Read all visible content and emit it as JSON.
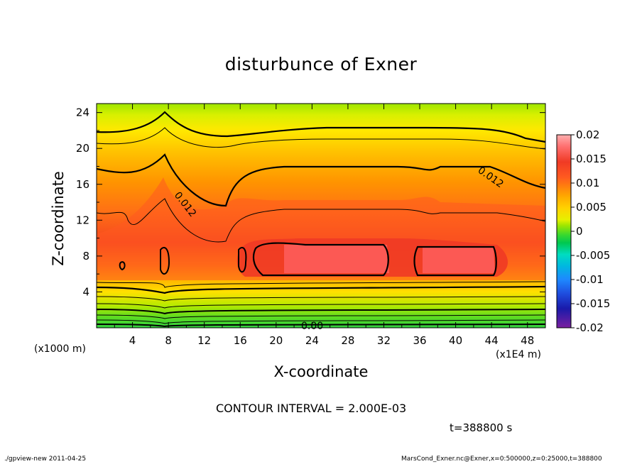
{
  "chart_data": {
    "type": "heatmap",
    "title": "disturbunce of Exner",
    "xlabel": "X-coordinate",
    "ylabel": "Z-coordinate",
    "x_unit": "(x1E4 m)",
    "y_unit": "(x1000 m)",
    "xlim": [
      0,
      50
    ],
    "ylim": [
      0,
      25
    ],
    "x_ticks": [
      "4",
      "8",
      "12",
      "16",
      "20",
      "24",
      "28",
      "32",
      "36",
      "40",
      "44",
      "48"
    ],
    "y_ticks": [
      "4",
      "8",
      "12",
      "16",
      "20",
      "24"
    ],
    "contour_interval": "CONTOUR INTERVAL = 2.000E-03",
    "contour_labels": [
      "0.012",
      "0.012",
      "0.00"
    ],
    "colorbar": {
      "ticks": [
        "0.02",
        "0.015",
        "0.01",
        "0.005",
        "0",
        "-0.005",
        "-0.01",
        "-0.015",
        "-0.02"
      ],
      "range": [
        -0.02,
        0.02
      ],
      "colors": [
        "#7a1fa0",
        "#1a1aaa",
        "#1f4fe0",
        "#1e88ff",
        "#00b8e0",
        "#00dcc0",
        "#00c850",
        "#36d830",
        "#9ee600",
        "#e6f000",
        "#ffd200",
        "#ffaa00",
        "#ff7a10",
        "#ff5a20",
        "#f03a25",
        "#ff7070",
        "#ffb0b0"
      ]
    },
    "time": "t=388800 s",
    "footer_left": "./gpview-new   2011-04-25",
    "footer_right": "MarsCond_Exner.nc@Exner,x=0:500000,z=0:25000,t=388800"
  }
}
